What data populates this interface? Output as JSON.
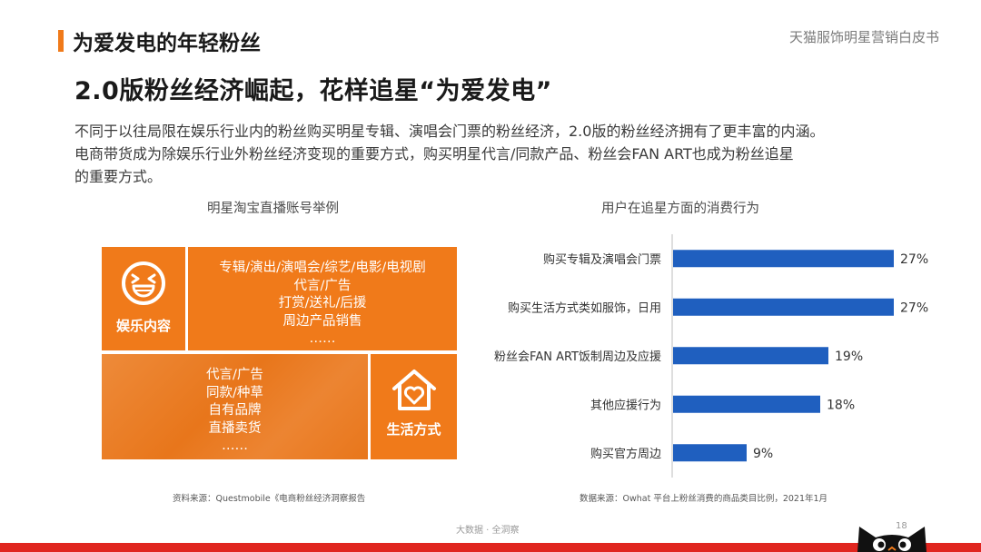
{
  "header": {
    "section_title": "为爱发电的年轻粉丝",
    "doc_name": "天猫服饰明星营销白皮书"
  },
  "headline": "2.0版粉丝经济崛起，花样追星“为爱发电”",
  "body": {
    "line1": "不同于以往局限在娱乐行业内的粉丝购买明星专辑、演唱会门票的粉丝经济，2.0版的粉丝经济拥有了更丰富的内涵。",
    "line2": "电商带货成为除娱乐行业外粉丝经济变现的重要方式，购买明星代言/同款产品、粉丝会FAN  ART也成为粉丝追星",
    "line3": "的重要方式。"
  },
  "left_panel": {
    "title": "明星淘宝直播账号举例",
    "entertainment": {
      "label": "娱乐内容",
      "icon": "laughing-face-icon",
      "items": [
        "专辑/演出/演唱会/综艺/电影/电视剧",
        "代言/广告",
        "打赏/送礼/后援",
        "周边产品销售",
        "……"
      ]
    },
    "lifestyle": {
      "label": "生活方式",
      "icon": "house-heart-icon",
      "items": [
        "代言/广告",
        "同款/种草",
        "自有品牌",
        "直播卖货",
        "……"
      ]
    },
    "colors": {
      "block": "#f07a1a"
    },
    "source": "资料来源：Questmobile《电商粉丝经济洞察报告"
  },
  "right_panel": {
    "title": "用户在追星方面的消费行为",
    "source": "数据来源：Owhat 平台上粉丝消费的商品类目比例，2021年1月"
  },
  "chart_data": {
    "type": "bar",
    "orientation": "horizontal",
    "title": "用户在追星方面的消费行为",
    "categories": [
      "购买专辑及演唱会门票",
      "购买生活方式类如服饰，日用",
      "粉丝会FAN ART饭制周边及应援",
      "其他应援行为",
      "购买官方周边"
    ],
    "values": [
      27,
      27,
      19,
      18,
      9
    ],
    "value_labels": [
      "27%",
      "27%",
      "19%",
      "18%",
      "9%"
    ],
    "xlim": [
      0,
      30
    ],
    "grid": false,
    "bar_color": "#1f5fbf"
  },
  "footer": {
    "text": "大数据 · 全洞察",
    "page": "18"
  },
  "colors": {
    "accent": "#f07a1a",
    "footer_strip": "#e0251f"
  }
}
